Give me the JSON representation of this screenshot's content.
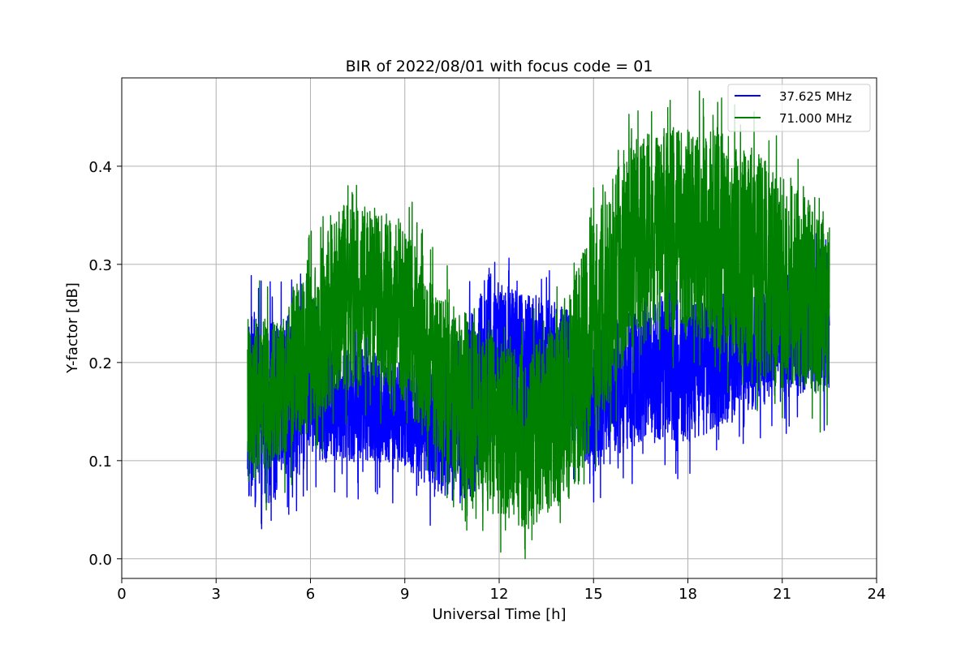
{
  "chart_data": {
    "type": "line",
    "title": "BIR of 2022/08/01 with focus code = 01",
    "xlabel": "Universal Time [h]",
    "ylabel": "Y-factor [dB]",
    "xlim": [
      0,
      24
    ],
    "ylim": [
      -0.02,
      0.49
    ],
    "xticks": [
      0,
      3,
      6,
      9,
      12,
      15,
      18,
      21,
      24
    ],
    "yticks": [
      0.0,
      0.1,
      0.2,
      0.3,
      0.4
    ],
    "xtick_labels": [
      "0",
      "3",
      "6",
      "9",
      "12",
      "15",
      "18",
      "21",
      "24"
    ],
    "ytick_labels": [
      "0.0",
      "0.1",
      "0.2",
      "0.3",
      "0.4"
    ],
    "grid": true,
    "legend_position": "top-right",
    "x_range_of_data": [
      4.0,
      22.5
    ],
    "series": [
      {
        "name": "37.625 MHz",
        "color": "#0000ff",
        "envelope": {
          "x": [
            4.0,
            5.0,
            6.0,
            7.0,
            8.0,
            9.0,
            10.0,
            11.0,
            11.6,
            12.0,
            13.0,
            14.0,
            14.6,
            15.0,
            16.0,
            17.0,
            18.0,
            19.0,
            20.0,
            21.0,
            22.0,
            22.5
          ],
          "low": [
            0.05,
            0.06,
            0.1,
            0.1,
            0.1,
            0.09,
            0.07,
            0.05,
            0.1,
            0.12,
            0.14,
            0.13,
            0.11,
            0.08,
            0.11,
            0.12,
            0.12,
            0.13,
            0.15,
            0.16,
            0.17,
            0.17
          ],
          "high": [
            0.25,
            0.24,
            0.27,
            0.22,
            0.21,
            0.2,
            0.21,
            0.24,
            0.3,
            0.28,
            0.27,
            0.26,
            0.24,
            0.24,
            0.25,
            0.27,
            0.26,
            0.27,
            0.29,
            0.3,
            0.31,
            0.33
          ]
        }
      },
      {
        "name": "71.000 MHz",
        "color": "#008000",
        "envelope": {
          "x": [
            4.0,
            5.0,
            6.0,
            7.0,
            8.0,
            9.0,
            10.0,
            11.0,
            12.0,
            13.0,
            14.0,
            14.6,
            15.0,
            16.0,
            17.0,
            18.0,
            19.0,
            20.0,
            21.0,
            22.0,
            22.5
          ],
          "low": [
            0.07,
            0.1,
            0.13,
            0.17,
            0.18,
            0.16,
            0.11,
            0.06,
            0.04,
            0.03,
            0.05,
            0.08,
            0.12,
            0.2,
            0.23,
            0.23,
            0.21,
            0.19,
            0.18,
            0.17,
            0.16
          ],
          "high": [
            0.25,
            0.24,
            0.3,
            0.36,
            0.36,
            0.34,
            0.27,
            0.25,
            0.22,
            0.21,
            0.26,
            0.31,
            0.34,
            0.42,
            0.44,
            0.44,
            0.44,
            0.42,
            0.39,
            0.36,
            0.34
          ]
        }
      }
    ]
  }
}
